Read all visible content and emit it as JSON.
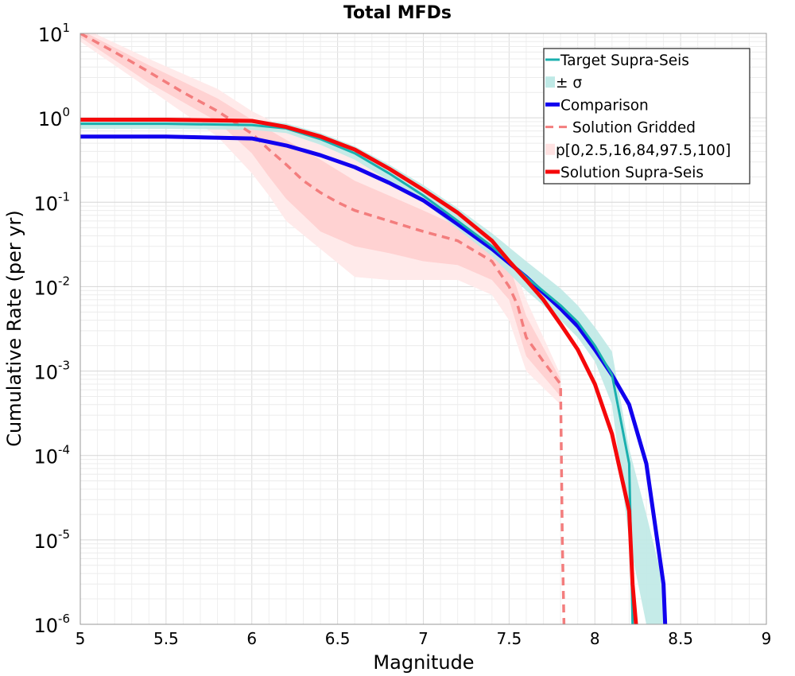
{
  "chart_data": {
    "type": "line",
    "title": "Total MFDs",
    "xlabel": "Magnitude",
    "ylabel": "Cumulative Rate (per yr)",
    "xlim": [
      5,
      9
    ],
    "ylim": [
      1e-06,
      10
    ],
    "yscale": "log",
    "grid": true,
    "legend_position": "top-right",
    "x_ticks": [
      "5",
      "5.5",
      "6",
      "6.5",
      "7",
      "7.5",
      "8",
      "8.5",
      "9"
    ],
    "y_ticks": [
      {
        "base": "10",
        "exp": "1",
        "value": 10
      },
      {
        "base": "10",
        "exp": "0",
        "value": 1
      },
      {
        "base": "10",
        "exp": "-1",
        "value": 0.1
      },
      {
        "base": "10",
        "exp": "-2",
        "value": 0.01
      },
      {
        "base": "10",
        "exp": "-3",
        "value": 0.001
      },
      {
        "base": "10",
        "exp": "-4",
        "value": 0.0001
      },
      {
        "base": "10",
        "exp": "-5",
        "value": 1e-05
      },
      {
        "base": "10",
        "exp": "-6",
        "value": 1e-06
      }
    ],
    "colors": {
      "target": "#1aafae",
      "target_band": "#bfe9e6",
      "comparison": "#1100ee",
      "gridded": "#f37d7d",
      "pband_outer": "#ffeaea",
      "pband_inner": "#ffd2d2",
      "solution": "#f5080a"
    },
    "legend": [
      {
        "label": "Target Supra-Seis",
        "style": "line",
        "color": "#1aafae"
      },
      {
        "label": "± σ",
        "style": "band",
        "color": "#bfe9e6"
      },
      {
        "label": "Comparison",
        "style": "line",
        "color": "#1100ee"
      },
      {
        "label": "Solution Gridded",
        "style": "dash",
        "color": "#f37d7d"
      },
      {
        "label": "p[0,2.5,16,84,97.5,100]",
        "style": "band",
        "color": "#ffe2e2"
      },
      {
        "label": "Solution Supra-Seis",
        "style": "line",
        "color": "#f5080a"
      }
    ],
    "series": [
      {
        "name": "Target Supra-Seis",
        "x": [
          5.0,
          5.5,
          6.0,
          6.2,
          6.4,
          6.6,
          6.8,
          7.0,
          7.2,
          7.4,
          7.6,
          7.8,
          7.9,
          8.0,
          8.1,
          8.2,
          8.21,
          8.22
        ],
        "y": [
          0.85,
          0.85,
          0.82,
          0.75,
          0.56,
          0.38,
          0.22,
          0.12,
          0.06,
          0.03,
          0.013,
          0.006,
          0.0038,
          0.002,
          0.0009,
          8e-05,
          1e-05,
          1e-06
        ]
      },
      {
        "name": "± σ",
        "x": [
          5.0,
          5.5,
          6.0,
          6.2,
          6.4,
          6.6,
          6.8,
          7.0,
          7.2,
          7.4,
          7.6,
          7.8,
          7.9,
          8.0,
          8.1,
          8.2,
          8.3,
          8.4
        ],
        "upper": [
          0.97,
          0.97,
          0.95,
          0.86,
          0.66,
          0.46,
          0.28,
          0.16,
          0.085,
          0.043,
          0.02,
          0.0095,
          0.006,
          0.0033,
          0.0017,
          0.00012,
          2e-05,
          3e-06
        ],
        "lower": [
          0.74,
          0.74,
          0.72,
          0.66,
          0.48,
          0.32,
          0.18,
          0.1,
          0.048,
          0.023,
          0.009,
          0.004,
          0.0025,
          0.0013,
          0.0004,
          1e-05,
          1e-06,
          1e-06
        ]
      },
      {
        "name": "Comparison",
        "x": [
          5.0,
          5.5,
          6.0,
          6.2,
          6.4,
          6.6,
          6.8,
          7.0,
          7.2,
          7.4,
          7.6,
          7.8,
          7.9,
          8.0,
          8.1,
          8.2,
          8.3,
          8.4,
          8.41
        ],
        "y": [
          0.6,
          0.6,
          0.57,
          0.47,
          0.36,
          0.26,
          0.17,
          0.105,
          0.055,
          0.028,
          0.013,
          0.0055,
          0.0034,
          0.0018,
          0.0009,
          0.0004,
          8e-05,
          3e-06,
          1e-06
        ]
      },
      {
        "name": "Solution Gridded",
        "x": [
          5.0,
          5.2,
          5.4,
          5.6,
          5.8,
          6.0,
          6.1,
          6.2,
          6.3,
          6.4,
          6.5,
          6.6,
          6.8,
          7.0,
          7.2,
          7.4,
          7.5,
          7.55,
          7.6,
          7.7,
          7.8,
          7.81,
          7.82
        ],
        "y": [
          10,
          6.0,
          3.5,
          2.0,
          1.2,
          0.65,
          0.42,
          0.28,
          0.18,
          0.13,
          0.1,
          0.08,
          0.06,
          0.045,
          0.035,
          0.02,
          0.01,
          0.006,
          0.0025,
          0.0013,
          0.0007,
          1e-05,
          1e-06
        ]
      },
      {
        "name": "p[0,2.5,16,84,97.5,100]",
        "x": [
          5.0,
          5.4,
          5.8,
          6.0,
          6.1,
          6.2,
          6.4,
          6.6,
          6.8,
          7.0,
          7.2,
          7.4,
          7.5,
          7.6,
          7.8
        ],
        "upper": [
          12,
          5.0,
          2.2,
          1.2,
          0.95,
          0.75,
          0.55,
          0.32,
          0.2,
          0.12,
          0.07,
          0.04,
          0.025,
          0.007,
          0.0009
        ],
        "upper_inner": [
          11,
          4.2,
          1.7,
          0.95,
          0.72,
          0.55,
          0.32,
          0.18,
          0.12,
          0.08,
          0.052,
          0.03,
          0.018,
          0.0045,
          0.0008
        ],
        "lower_inner": [
          9,
          2.6,
          0.9,
          0.38,
          0.2,
          0.11,
          0.045,
          0.03,
          0.025,
          0.02,
          0.018,
          0.012,
          0.007,
          0.0015,
          0.0005
        ],
        "lower": [
          8,
          2.2,
          0.6,
          0.22,
          0.12,
          0.06,
          0.028,
          0.013,
          0.012,
          0.012,
          0.012,
          0.008,
          0.004,
          0.001,
          0.0004
        ]
      },
      {
        "name": "Solution Supra-Seis",
        "x": [
          5.0,
          5.5,
          6.0,
          6.2,
          6.4,
          6.6,
          6.8,
          7.0,
          7.2,
          7.4,
          7.5,
          7.6,
          7.7,
          7.8,
          7.9,
          8.0,
          8.1,
          8.2,
          8.22,
          8.24
        ],
        "y": [
          0.95,
          0.95,
          0.92,
          0.78,
          0.6,
          0.42,
          0.25,
          0.14,
          0.075,
          0.035,
          0.02,
          0.012,
          0.007,
          0.0036,
          0.0018,
          0.0007,
          0.00018,
          2.2e-05,
          3e-06,
          1e-06
        ]
      }
    ]
  }
}
